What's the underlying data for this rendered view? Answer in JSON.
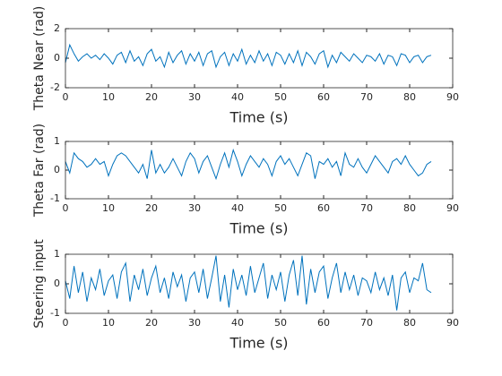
{
  "chart_data": [
    {
      "type": "line",
      "color": "#0072bd",
      "x_label": "Time (s)",
      "y_label": "Theta Near (rad)",
      "xlim": [
        0,
        90
      ],
      "xticks": [
        0,
        10,
        20,
        30,
        40,
        50,
        60,
        70,
        80,
        90
      ],
      "ylim": [
        -2,
        2
      ],
      "yticks": [
        -2,
        0,
        2
      ],
      "x": [
        0,
        1,
        2,
        3,
        4,
        5,
        6,
        7,
        8,
        9,
        10,
        11,
        12,
        13,
        14,
        15,
        16,
        17,
        18,
        19,
        20,
        21,
        22,
        23,
        24,
        25,
        26,
        27,
        28,
        29,
        30,
        31,
        32,
        33,
        34,
        35,
        36,
        37,
        38,
        39,
        40,
        41,
        42,
        43,
        44,
        45,
        46,
        47,
        48,
        49,
        50,
        51,
        52,
        53,
        54,
        55,
        56,
        57,
        58,
        59,
        60,
        61,
        62,
        63,
        64,
        65,
        66,
        67,
        68,
        69,
        70,
        71,
        72,
        73,
        74,
        75,
        76,
        77,
        78,
        79,
        80,
        81,
        82,
        83,
        84,
        85
      ],
      "values": [
        -0.3,
        0.9,
        0.3,
        -0.2,
        0.1,
        0.3,
        0,
        0.2,
        -0.1,
        0.3,
        0,
        -0.4,
        0.2,
        0.4,
        -0.3,
        0.5,
        -0.2,
        0.1,
        -0.5,
        0.3,
        0.6,
        -0.2,
        0.1,
        -0.6,
        0.4,
        -0.3,
        0.2,
        0.5,
        -0.4,
        0.3,
        -0.2,
        0.4,
        -0.5,
        0.3,
        0.5,
        -0.6,
        0.1,
        0.4,
        -0.5,
        0.3,
        -0.2,
        0.6,
        -0.4,
        0.2,
        -0.3,
        0.5,
        -0.2,
        0.3,
        -0.5,
        0.4,
        0.2,
        -0.4,
        0.3,
        -0.3,
        0.5,
        -0.5,
        0.4,
        0.1,
        -0.4,
        0.3,
        0.5,
        -0.6,
        0.2,
        -0.3,
        0.4,
        0.1,
        -0.2,
        0.3,
        0,
        -0.3,
        0.2,
        0.1,
        -0.2,
        0.3,
        -0.4,
        0.2,
        0.1,
        -0.5,
        0.3,
        0.2,
        -0.3,
        0.1,
        0.2,
        -0.3,
        0.1,
        0.2
      ]
    },
    {
      "type": "line",
      "color": "#0072bd",
      "x_label": "Time (s)",
      "y_label": "Theta Far (rad)",
      "xlim": [
        0,
        90
      ],
      "xticks": [
        0,
        10,
        20,
        30,
        40,
        50,
        60,
        70,
        80,
        90
      ],
      "ylim": [
        -1,
        1
      ],
      "yticks": [
        -1,
        0,
        1
      ],
      "x": [
        0,
        1,
        2,
        3,
        4,
        5,
        6,
        7,
        8,
        9,
        10,
        11,
        12,
        13,
        14,
        15,
        16,
        17,
        18,
        19,
        20,
        21,
        22,
        23,
        24,
        25,
        26,
        27,
        28,
        29,
        30,
        31,
        32,
        33,
        34,
        35,
        36,
        37,
        38,
        39,
        40,
        41,
        42,
        43,
        44,
        45,
        46,
        47,
        48,
        49,
        50,
        51,
        52,
        53,
        54,
        55,
        56,
        57,
        58,
        59,
        60,
        61,
        62,
        63,
        64,
        65,
        66,
        67,
        68,
        69,
        70,
        71,
        72,
        73,
        74,
        75,
        76,
        77,
        78,
        79,
        80,
        81,
        82,
        83,
        84,
        85
      ],
      "values": [
        0.3,
        -0.1,
        0.6,
        0.4,
        0.3,
        0.1,
        0.2,
        0.4,
        0.2,
        0.3,
        -0.2,
        0.2,
        0.5,
        0.6,
        0.5,
        0.3,
        0.1,
        -0.1,
        0.2,
        -0.3,
        0.7,
        -0.1,
        0.2,
        -0.1,
        0.1,
        0.4,
        0.1,
        -0.2,
        0.3,
        0.6,
        0.4,
        -0.1,
        0.3,
        0.5,
        0.1,
        -0.3,
        0.2,
        0.6,
        0.1,
        0.7,
        0.3,
        -0.2,
        0.2,
        0.5,
        0.3,
        0.1,
        0.4,
        0.2,
        -0.2,
        0.3,
        0.5,
        0.2,
        0.4,
        0.1,
        -0.2,
        0.2,
        0.6,
        0.5,
        -0.3,
        0.3,
        0.2,
        0.4,
        0.1,
        0.3,
        -0.2,
        0.6,
        0.2,
        0.1,
        0.4,
        0.1,
        -0.1,
        0.2,
        0.5,
        0.3,
        0.1,
        -0.1,
        0.3,
        0.4,
        0.2,
        0.5,
        0.2,
        0,
        -0.2,
        -0.1,
        0.2,
        0.3
      ]
    },
    {
      "type": "line",
      "color": "#0072bd",
      "x_label": "Time (s)",
      "y_label": "Steering input",
      "xlim": [
        0,
        90
      ],
      "xticks": [
        0,
        10,
        20,
        30,
        40,
        50,
        60,
        70,
        80,
        90
      ],
      "ylim": [
        -1,
        1
      ],
      "yticks": [
        -1,
        0,
        1
      ],
      "x": [
        0,
        1,
        2,
        3,
        4,
        5,
        6,
        7,
        8,
        9,
        10,
        11,
        12,
        13,
        14,
        15,
        16,
        17,
        18,
        19,
        20,
        21,
        22,
        23,
        24,
        25,
        26,
        27,
        28,
        29,
        30,
        31,
        32,
        33,
        34,
        35,
        36,
        37,
        38,
        39,
        40,
        41,
        42,
        43,
        44,
        45,
        46,
        47,
        48,
        49,
        50,
        51,
        52,
        53,
        54,
        55,
        56,
        57,
        58,
        59,
        60,
        61,
        62,
        63,
        64,
        65,
        66,
        67,
        68,
        69,
        70,
        71,
        72,
        73,
        74,
        75,
        76,
        77,
        78,
        79,
        80,
        81,
        82,
        83,
        84,
        85
      ],
      "values": [
        0.1,
        -0.5,
        0.6,
        -0.3,
        0.4,
        -0.6,
        0.2,
        -0.2,
        0.5,
        -0.4,
        0.1,
        0.3,
        -0.5,
        0.4,
        0.7,
        -0.6,
        0.3,
        -0.2,
        0.5,
        -0.4,
        0.2,
        0.6,
        -0.3,
        0.2,
        -0.5,
        0.4,
        -0.1,
        0.3,
        -0.6,
        0.2,
        0.4,
        -0.3,
        0.5,
        -0.5,
        0.2,
        0.95,
        -0.6,
        0.3,
        -0.8,
        0.5,
        -0.2,
        0.3,
        -0.4,
        0.6,
        -0.3,
        0.2,
        0.7,
        -0.5,
        0.3,
        -0.2,
        0.4,
        -0.6,
        0.3,
        0.8,
        -0.4,
        0.95,
        -0.7,
        0.5,
        -0.3,
        0.4,
        0.6,
        -0.5,
        0.2,
        0.7,
        -0.3,
        0.4,
        -0.2,
        0.3,
        -0.4,
        0.2,
        0.1,
        -0.3,
        0.4,
        -0.2,
        0.2,
        -0.4,
        0.3,
        -0.9,
        0.2,
        0.4,
        -0.3,
        0.2,
        0.1,
        0.7,
        -0.2,
        -0.3
      ]
    }
  ]
}
